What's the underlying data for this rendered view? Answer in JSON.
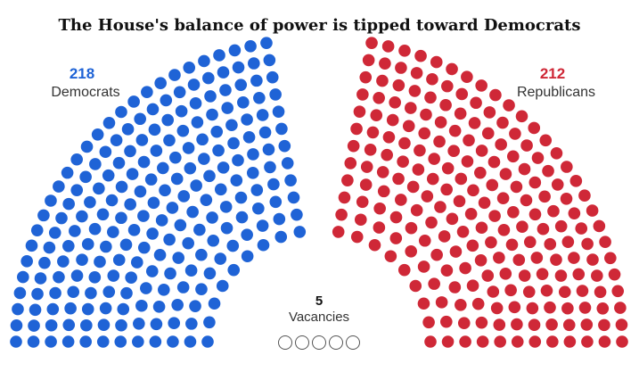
{
  "chart_data": {
    "type": "parliament",
    "title": "The House's balance of power is tipped toward Democrats",
    "series": [
      {
        "name": "Democrats",
        "value": 218,
        "color": "#1f63d6"
      },
      {
        "name": "Republicans",
        "value": 212,
        "color": "#cf2837"
      },
      {
        "name": "Vacancies",
        "value": 5,
        "color": "#ffffff"
      }
    ],
    "labels": {
      "dem_count": "218",
      "dem_name": "Democrats",
      "rep_count": "212",
      "rep_name": "Republicans",
      "vac_count": "5",
      "vac_name": "Vacancies"
    }
  }
}
